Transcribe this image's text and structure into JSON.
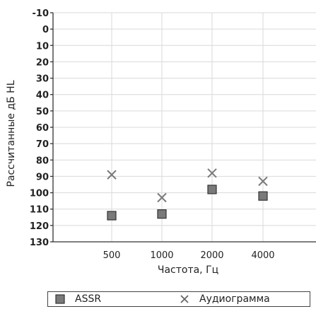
{
  "chart_data": {
    "type": "scatter",
    "title": "",
    "xlabel": "Частота, Гц",
    "ylabel": "Рассчитанные дБ HL",
    "y_inverted": true,
    "ylim": [
      -10,
      130
    ],
    "y_ticks": [
      "-10",
      "0",
      "10",
      "20",
      "30",
      "40",
      "50",
      "60",
      "70",
      "80",
      "90",
      "100",
      "110",
      "120",
      "130"
    ],
    "categories": [
      "500",
      "1000",
      "2000",
      "4000"
    ],
    "grid": true,
    "legend_position": "bottom",
    "series": [
      {
        "name": "ASSR",
        "marker": "square",
        "color": "#7a7a7a",
        "values": [
          114,
          113,
          98,
          102
        ]
      },
      {
        "name": "Аудиограмма",
        "marker": "x",
        "color": "#7a7a7a",
        "values": [
          89,
          103,
          88,
          93
        ]
      }
    ]
  }
}
